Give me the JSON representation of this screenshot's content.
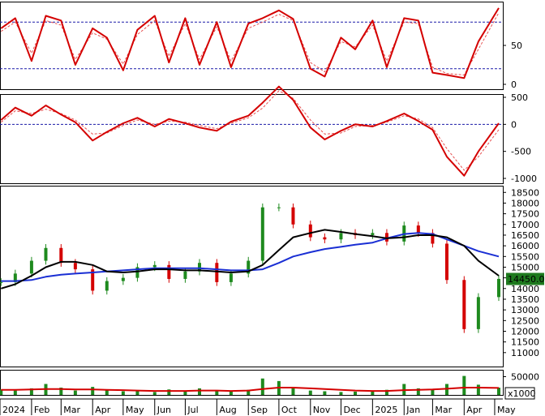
{
  "chart_data": [
    {
      "type": "line",
      "panel": "stochastic",
      "yticks": [
        "50",
        "0"
      ],
      "ylim": [
        0,
        100
      ],
      "ref_lines": [
        80,
        20
      ],
      "x": [
        "2024-01-02",
        "2024-01-16",
        "2024-02-01",
        "2024-02-15",
        "2024-03-01",
        "2024-03-15",
        "2024-04-01",
        "2024-04-15",
        "2024-05-01",
        "2024-05-15",
        "2024-06-01",
        "2024-06-15",
        "2024-07-01",
        "2024-07-15",
        "2024-08-01",
        "2024-08-15",
        "2024-09-01",
        "2024-09-15",
        "2024-10-01",
        "2024-10-15",
        "2024-11-01",
        "2024-11-15",
        "2024-12-01",
        "2024-12-15",
        "2025-01-01",
        "2025-01-15",
        "2025-02-01",
        "2025-02-15",
        "2025-03-01",
        "2025-03-15",
        "2025-04-01",
        "2025-04-15",
        "2025-05-05"
      ],
      "series": [
        {
          "values": [
            72,
            85,
            30,
            88,
            82,
            25,
            72,
            60,
            18,
            70,
            88,
            28,
            85,
            25,
            80,
            22,
            78,
            85,
            95,
            84,
            20,
            10,
            60,
            45,
            82,
            22,
            85,
            82,
            15,
            12,
            8,
            55,
            98
          ]
        },
        {
          "values": [
            68,
            80,
            40,
            82,
            76,
            32,
            66,
            58,
            26,
            64,
            82,
            36,
            78,
            32,
            74,
            30,
            72,
            80,
            90,
            82,
            28,
            16,
            55,
            48,
            76,
            30,
            80,
            78,
            22,
            14,
            12,
            45,
            92
          ]
        }
      ]
    },
    {
      "type": "line",
      "panel": "macd",
      "yticks": [
        "500",
        "0",
        "-500",
        "-1000"
      ],
      "ylim": [
        -1000,
        500
      ],
      "ref_lines": [
        0
      ],
      "x": [
        "2024-01-02",
        "2024-01-16",
        "2024-02-01",
        "2024-02-15",
        "2024-03-01",
        "2024-03-15",
        "2024-04-01",
        "2024-04-15",
        "2024-05-01",
        "2024-05-15",
        "2024-06-01",
        "2024-06-15",
        "2024-07-01",
        "2024-07-15",
        "2024-08-01",
        "2024-08-15",
        "2024-09-01",
        "2024-09-15",
        "2024-10-01",
        "2024-10-15",
        "2024-11-01",
        "2024-11-15",
        "2024-12-01",
        "2024-12-15",
        "2025-01-01",
        "2025-01-15",
        "2025-02-01",
        "2025-02-15",
        "2025-03-01",
        "2025-03-15",
        "2025-04-01",
        "2025-04-15",
        "2025-05-05"
      ],
      "series": [
        {
          "values": [
            80,
            310,
            160,
            350,
            180,
            40,
            -300,
            -140,
            20,
            120,
            -40,
            100,
            20,
            -60,
            -120,
            50,
            160,
            400,
            700,
            450,
            -60,
            -280,
            -120,
            0,
            -40,
            60,
            200,
            60,
            -100,
            -600,
            -950,
            -500,
            20
          ]
        },
        {
          "values": [
            40,
            250,
            200,
            280,
            200,
            80,
            -180,
            -160,
            -20,
            80,
            0,
            60,
            40,
            -20,
            -80,
            20,
            120,
            300,
            620,
            480,
            80,
            -180,
            -160,
            -40,
            -20,
            40,
            160,
            100,
            -60,
            -450,
            -850,
            -600,
            -100
          ]
        }
      ]
    },
    {
      "type": "candlestick",
      "panel": "price",
      "yticks": [
        "18500",
        "18000",
        "17500",
        "17000",
        "16500",
        "16000",
        "15500",
        "15000",
        "14500",
        "14000",
        "13500",
        "13000",
        "12500",
        "12000",
        "11500",
        "11000"
      ],
      "ylim": [
        10500,
        18700
      ],
      "last_price_label": "14450.00",
      "x": [
        "2024-01-02",
        "2024-01-16",
        "2024-02-01",
        "2024-02-15",
        "2024-03-01",
        "2024-03-15",
        "2024-04-01",
        "2024-04-15",
        "2024-05-01",
        "2024-05-15",
        "2024-06-01",
        "2024-06-15",
        "2024-07-01",
        "2024-07-15",
        "2024-08-01",
        "2024-08-15",
        "2024-09-01",
        "2024-09-15",
        "2024-10-01",
        "2024-10-15",
        "2024-11-01",
        "2024-11-15",
        "2024-12-01",
        "2024-12-15",
        "2025-01-01",
        "2025-01-15",
        "2025-02-01",
        "2025-02-15",
        "2025-03-01",
        "2025-03-15",
        "2025-04-01",
        "2025-04-15",
        "2025-05-05"
      ],
      "close": [
        14300,
        14700,
        15300,
        15900,
        15200,
        14900,
        13900,
        14350,
        14500,
        15000,
        15100,
        14450,
        14800,
        15200,
        14300,
        14700,
        15300,
        17800,
        17800,
        17000,
        16400,
        16300,
        16600,
        16500,
        16600,
        16200,
        16950,
        16600,
        16100,
        14400,
        12100,
        13600,
        14450
      ],
      "sma_fast": [
        14000,
        14200,
        14600,
        15000,
        15250,
        15250,
        15100,
        14800,
        14750,
        14800,
        14900,
        14900,
        14850,
        14850,
        14800,
        14750,
        14800,
        15100,
        15800,
        16400,
        16600,
        16750,
        16650,
        16550,
        16450,
        16350,
        16400,
        16500,
        16500,
        16400,
        16000,
        15300,
        14600
      ],
      "sma_slow": [
        14350,
        14350,
        14400,
        14550,
        14650,
        14700,
        14750,
        14800,
        14850,
        14900,
        14950,
        14950,
        14950,
        14950,
        14900,
        14850,
        14850,
        14900,
        15200,
        15500,
        15700,
        15850,
        15950,
        16050,
        16150,
        16350,
        16550,
        16600,
        16550,
        16300,
        16000,
        15750,
        15500
      ]
    },
    {
      "type": "bar",
      "panel": "volume",
      "unit_label": "x1000",
      "yticks": [
        "50000"
      ],
      "ylim": [
        0,
        60000
      ],
      "x": [
        "2024-01-02",
        "2024-01-16",
        "2024-02-01",
        "2024-02-15",
        "2024-03-01",
        "2024-03-15",
        "2024-04-01",
        "2024-04-15",
        "2024-05-01",
        "2024-05-15",
        "2024-06-01",
        "2024-06-15",
        "2024-07-01",
        "2024-07-15",
        "2024-08-01",
        "2024-08-15",
        "2024-09-01",
        "2024-09-15",
        "2024-10-01",
        "2024-10-15",
        "2024-11-01",
        "2024-11-15",
        "2024-12-01",
        "2024-12-15",
        "2025-01-01",
        "2025-01-15",
        "2025-02-01",
        "2025-02-15",
        "2025-03-01",
        "2025-03-15",
        "2025-04-01",
        "2025-04-15",
        "2025-05-05"
      ],
      "values": [
        15000,
        12000,
        18000,
        30000,
        20000,
        12000,
        22000,
        14000,
        10000,
        12000,
        8000,
        15000,
        10000,
        18000,
        12000,
        9000,
        14000,
        45000,
        38000,
        20000,
        12000,
        10000,
        8000,
        9000,
        10000,
        14000,
        30000,
        18000,
        15000,
        30000,
        52000,
        28000,
        20000
      ],
      "ma": [
        14000,
        14000,
        15000,
        16000,
        16000,
        15000,
        15000,
        14000,
        13000,
        12000,
        11000,
        11000,
        11000,
        12000,
        12000,
        11000,
        12000,
        16000,
        20000,
        20000,
        18000,
        16000,
        14000,
        12000,
        11000,
        11000,
        13000,
        14000,
        15000,
        17000,
        20000,
        20000,
        19000
      ]
    }
  ],
  "time_axis": {
    "labels": [
      "2024",
      "Feb",
      "Mar",
      "Apr",
      "May",
      "Jun",
      "Jul",
      "Aug",
      "Sep",
      "Oct",
      "Nov",
      "Dec",
      "2025",
      "Jan",
      "Mar",
      "Apr",
      "May"
    ]
  },
  "colors": {
    "line_main": "#d40000",
    "line_signal": "#e65050",
    "ref_line": "#1a1aa8",
    "up_candle": "#1e8a1e",
    "down_candle": "#d40000",
    "sma_fast": "#000000",
    "sma_slow": "#1a2fd4",
    "volume_bar": "#1e8a1e",
    "volume_ma": "#d40000",
    "last_price_bg": "#1e7a1e",
    "last_price_text": "#ffffff"
  }
}
